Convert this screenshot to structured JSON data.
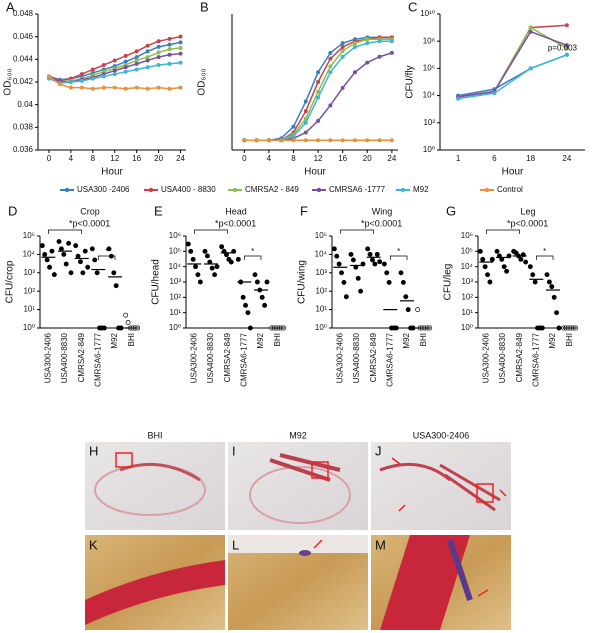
{
  "chart_data": [
    {
      "type": "line",
      "panel": "A",
      "xlabel": "Hour",
      "ylabel": "OD₆₀₀",
      "xlim": [
        -2,
        25
      ],
      "xticks": [
        0,
        4,
        8,
        12,
        16,
        20,
        24
      ],
      "ylim": [
        0.036,
        0.048
      ],
      "yticks": [
        0.036,
        0.038,
        0.04,
        0.042,
        0.044,
        0.046,
        0.048
      ],
      "legend": "bottom",
      "x": [
        0,
        2,
        4,
        6,
        8,
        10,
        12,
        14,
        16,
        18,
        20,
        22,
        24
      ],
      "series": [
        {
          "name": "USA300 -2406",
          "color": "#3a7ec2",
          "values": [
            0.0425,
            0.0422,
            0.0423,
            0.0425,
            0.0428,
            0.0431,
            0.0434,
            0.0438,
            0.0442,
            0.0447,
            0.0451,
            0.0453,
            0.0455
          ]
        },
        {
          "name": "USA400 - 8830",
          "color": "#c9434a",
          "values": [
            0.0425,
            0.0421,
            0.0423,
            0.0427,
            0.0431,
            0.0435,
            0.0439,
            0.0443,
            0.0447,
            0.0452,
            0.0456,
            0.0458,
            0.046
          ]
        },
        {
          "name": "CMRSA2 - 849",
          "color": "#8dbd4a",
          "values": [
            0.0424,
            0.042,
            0.0421,
            0.0423,
            0.0426,
            0.0429,
            0.0432,
            0.0435,
            0.0439,
            0.0442,
            0.0446,
            0.0449,
            0.045
          ]
        },
        {
          "name": "CMRSA6 -1777",
          "color": "#7b4fa0",
          "values": [
            0.0424,
            0.042,
            0.042,
            0.0422,
            0.0424,
            0.0427,
            0.043,
            0.0433,
            0.0436,
            0.0439,
            0.0442,
            0.0444,
            0.0445
          ]
        },
        {
          "name": "M92",
          "color": "#3fb5d6",
          "values": [
            0.0423,
            0.0419,
            0.042,
            0.0421,
            0.0423,
            0.0425,
            0.0427,
            0.0429,
            0.0431,
            0.0433,
            0.0435,
            0.0436,
            0.0437
          ]
        },
        {
          "name": "Control",
          "color": "#e8913a",
          "values": [
            0.0425,
            0.0418,
            0.0415,
            0.0415,
            0.0414,
            0.0415,
            0.0415,
            0.0414,
            0.0415,
            0.0414,
            0.0415,
            0.0414,
            0.0415
          ]
        }
      ]
    },
    {
      "type": "line",
      "panel": "B",
      "xlabel": "Hour",
      "ylabel": "OD₆₀₀",
      "xlim": [
        -2,
        25
      ],
      "xticks": [
        0,
        4,
        8,
        12,
        16,
        20,
        24
      ],
      "ylim": [
        0,
        0.7
      ],
      "x": [
        0,
        2,
        4,
        6,
        8,
        10,
        12,
        14,
        16,
        18,
        20,
        22,
        24
      ],
      "series": [
        {
          "color": "#3a7ec2",
          "values": [
            0.05,
            0.05,
            0.05,
            0.06,
            0.12,
            0.25,
            0.4,
            0.5,
            0.55,
            0.57,
            0.58,
            0.58,
            0.58
          ]
        },
        {
          "color": "#c9434a",
          "values": [
            0.05,
            0.05,
            0.05,
            0.05,
            0.09,
            0.2,
            0.35,
            0.47,
            0.53,
            0.56,
            0.57,
            0.58,
            0.58
          ]
        },
        {
          "color": "#8dbd4a",
          "values": [
            0.05,
            0.05,
            0.05,
            0.05,
            0.08,
            0.16,
            0.3,
            0.43,
            0.51,
            0.55,
            0.57,
            0.57,
            0.57
          ]
        },
        {
          "color": "#7b4fa0",
          "values": [
            0.05,
            0.05,
            0.05,
            0.05,
            0.06,
            0.09,
            0.15,
            0.23,
            0.32,
            0.4,
            0.45,
            0.48,
            0.5
          ]
        },
        {
          "color": "#3fb5d6",
          "values": [
            0.05,
            0.05,
            0.05,
            0.05,
            0.07,
            0.14,
            0.27,
            0.4,
            0.48,
            0.53,
            0.55,
            0.56,
            0.56
          ]
        },
        {
          "color": "#e8913a",
          "values": [
            0.05,
            0.05,
            0.05,
            0.05,
            0.05,
            0.05,
            0.05,
            0.05,
            0.05,
            0.05,
            0.05,
            0.05,
            0.05
          ]
        }
      ]
    },
    {
      "type": "catline",
      "panel": "C",
      "xlabel": "Hour",
      "ylabel": "CFU/fly",
      "log": true,
      "ylim": [
        1,
        10000000000
      ],
      "yticks": [
        {
          "value": 1,
          "label": "10⁰"
        },
        {
          "value": 100,
          "label": "10²"
        },
        {
          "value": 10000,
          "label": "10⁴"
        },
        {
          "value": 1000000,
          "label": "10⁶"
        },
        {
          "value": 100000000,
          "label": "10⁸"
        },
        {
          "value": 10000000000,
          "label": "10¹⁰"
        }
      ],
      "categories": [
        "1",
        "6",
        "18",
        "24"
      ],
      "annotation": "p=0.003",
      "series": [
        {
          "color": "#3a7ec2",
          "values": [
            10000,
            30000,
            1000000,
            10000000
          ]
        },
        {
          "color": "#c9434a",
          "values": [
            8000,
            20000,
            1000000000,
            1500000000
          ]
        },
        {
          "color": "#8dbd4a",
          "values": [
            8000,
            20000,
            1000000000,
            30000000
          ]
        },
        {
          "color": "#7b4fa0",
          "values": [
            8000,
            20000,
            500000000,
            50000000
          ]
        },
        {
          "color": "#3fb5d6",
          "values": [
            6000,
            15000,
            1000000,
            10000000
          ]
        }
      ]
    },
    {
      "type": "strip",
      "panel": "D",
      "title": "Crop",
      "ylabel": "CFU/crop",
      "log": true,
      "ylim": [
        1,
        100000
      ],
      "yticks": [
        {
          "value": 1,
          "label": "10⁰"
        },
        {
          "value": 10,
          "label": "10¹"
        },
        {
          "value": 100,
          "label": "10²"
        },
        {
          "value": 1000,
          "label": "10³"
        },
        {
          "value": 10000,
          "label": "10⁴"
        },
        {
          "value": 100000,
          "label": "10⁵"
        }
      ],
      "categories": [
        "USA300-2406",
        "USA400-8830",
        "CMRSA2-849",
        "CMRSA6-1777",
        "M92",
        "BHI"
      ],
      "annotations": [
        "*p<0.0001",
        "*"
      ],
      "values": [
        [
          30000,
          10000,
          5000,
          2000,
          15000,
          800
        ],
        [
          50000,
          20000,
          10000,
          3000,
          40000,
          1000
        ],
        [
          30000,
          8000,
          4000,
          1000,
          15000,
          2000
        ],
        [
          20000,
          5000,
          1000,
          1,
          1,
          1
        ],
        [
          20000,
          8000,
          1000,
          200,
          1,
          1
        ],
        [
          5,
          2,
          1,
          1,
          1,
          1
        ]
      ],
      "medians": [
        7000,
        15000,
        6000,
        1500,
        600,
        1
      ]
    },
    {
      "type": "strip",
      "panel": "E",
      "title": "Head",
      "ylabel": "CFU/head",
      "log": true,
      "ylim": [
        1,
        1000000
      ],
      "yticks": [
        {
          "value": 1,
          "label": "10⁰"
        },
        {
          "value": 10,
          "label": "10¹"
        },
        {
          "value": 100,
          "label": "10²"
        },
        {
          "value": 1000,
          "label": "10³"
        },
        {
          "value": 10000,
          "label": "10⁴"
        },
        {
          "value": 100000,
          "label": "10⁵"
        },
        {
          "value": 1000000,
          "label": "10⁶"
        }
      ],
      "categories": [
        "USA300-2406",
        "USA400-8830",
        "CMRSA2-849",
        "CMRSA6-1777",
        "M92",
        "BHI"
      ],
      "annotations": [
        "*p<0.0001",
        "*"
      ],
      "values": [
        [
          300000,
          100000,
          30000,
          10000,
          3000,
          1000
        ],
        [
          100000,
          50000,
          20000,
          8000,
          3000,
          10000
        ],
        [
          200000,
          100000,
          60000,
          30000,
          20000,
          100000
        ],
        [
          30000,
          1000,
          100,
          30,
          10,
          1
        ],
        [
          3000,
          1000,
          300,
          100,
          30,
          1000
        ],
        [
          1,
          1,
          1,
          1,
          1,
          1
        ]
      ],
      "medians": [
        15000,
        15000,
        80000,
        1000,
        300,
        1
      ]
    },
    {
      "type": "strip",
      "panel": "F",
      "title": "Wing",
      "ylabel": "CFU/wing",
      "log": true,
      "ylim": [
        1,
        100000
      ],
      "yticks": [
        {
          "value": 1,
          "label": "10⁰"
        },
        {
          "value": 10,
          "label": "10¹"
        },
        {
          "value": 100,
          "label": "10²"
        },
        {
          "value": 1000,
          "label": "10³"
        },
        {
          "value": 10000,
          "label": "10⁴"
        },
        {
          "value": 100000,
          "label": "10⁵"
        }
      ],
      "categories": [
        "USA300-2406",
        "USA400-8830",
        "CMRSA2-849",
        "CMRSA6-1777",
        "M92",
        "BHI"
      ],
      "annotations": [
        "*p<0.0001",
        "*"
      ],
      "values": [
        [
          20000,
          8000,
          3000,
          1000,
          300,
          50
        ],
        [
          10000,
          5000,
          2000,
          500,
          100,
          3000
        ],
        [
          20000,
          10000,
          5000,
          3000,
          10000,
          4000
        ],
        [
          3000,
          1000,
          300,
          1,
          1,
          1
        ],
        [
          1000,
          300,
          50,
          10,
          1,
          1
        ],
        [
          10,
          1,
          1,
          1,
          1,
          1
        ]
      ],
      "medians": [
        2000,
        2500,
        7000,
        10,
        30,
        1
      ]
    },
    {
      "type": "strip",
      "panel": "G",
      "title": "Leg",
      "ylabel": "CFU/leg",
      "log": true,
      "ylim": [
        1,
        1000000
      ],
      "yticks": [
        {
          "value": 1,
          "label": "10⁰"
        },
        {
          "value": 10,
          "label": "10¹"
        },
        {
          "value": 100,
          "label": "10²"
        },
        {
          "value": 1000,
          "label": "10³"
        },
        {
          "value": 10000,
          "label": "10⁴"
        },
        {
          "value": 100000,
          "label": "10⁵"
        },
        {
          "value": 1000000,
          "label": "10⁶"
        }
      ],
      "categories": [
        "USA300-2406",
        "USA400-8830",
        "CMRSA2-849",
        "CMRSA6-1777",
        "M92",
        "BHI"
      ],
      "annotations": [
        "*p<0.0001",
        "*"
      ],
      "values": [
        [
          100000,
          30000,
          10000,
          3000,
          1000,
          30000
        ],
        [
          100000,
          50000,
          30000,
          10000,
          5000,
          50000
        ],
        [
          100000,
          80000,
          50000,
          30000,
          60000,
          20000
        ],
        [
          10000,
          3000,
          1000,
          1,
          1,
          1
        ],
        [
          3000,
          1000,
          500,
          100,
          10,
          1
        ],
        [
          1,
          1,
          1,
          1,
          1,
          1
        ]
      ],
      "medians": [
        20000,
        40000,
        50000,
        1500,
        300,
        1
      ]
    }
  ],
  "images": [
    {
      "panel": "H",
      "title": "BHI"
    },
    {
      "panel": "I",
      "title": "M92"
    },
    {
      "panel": "J",
      "title": "USA300-2406"
    },
    {
      "panel": "K"
    },
    {
      "panel": "L"
    },
    {
      "panel": "M"
    }
  ]
}
